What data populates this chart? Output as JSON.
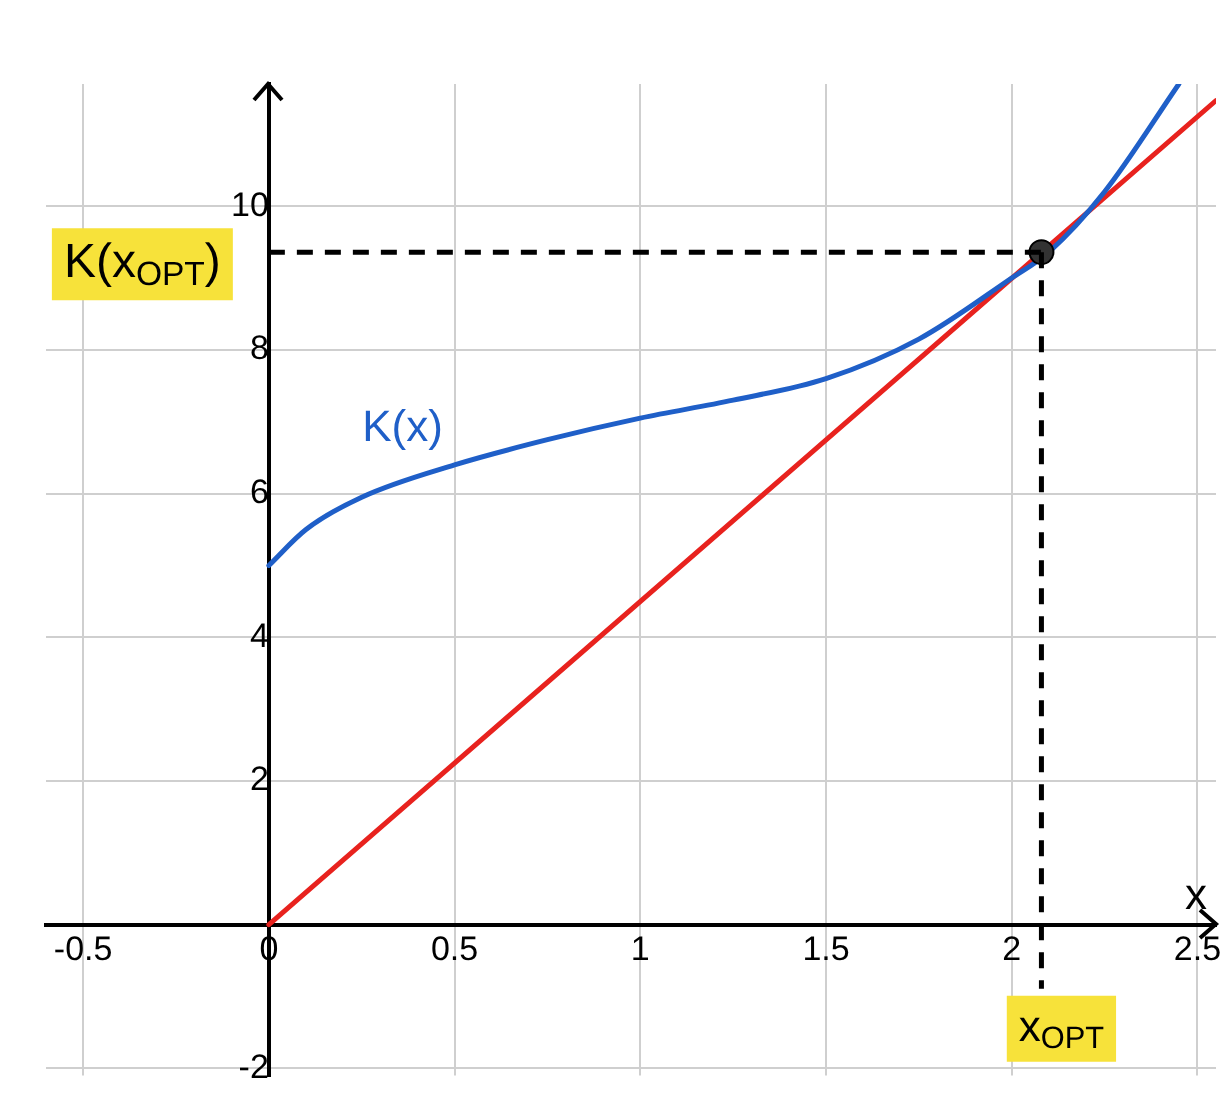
{
  "chart_data": {
    "type": "line",
    "xlabel": "x",
    "xlim": [
      -0.6,
      2.55
    ],
    "ylim": [
      -2.1,
      11.7
    ],
    "xticks": [
      -0.5,
      0,
      0.5,
      1,
      1.5,
      2,
      2.5
    ],
    "yticks": [
      -2,
      {
        "value": 0,
        "label": null
      },
      2,
      4,
      6,
      8,
      10
    ],
    "grid": true,
    "legend": false,
    "series": [
      {
        "name": "K(x)",
        "color": "#1f5fc8",
        "marker": "none",
        "x": [
          0,
          0.1,
          0.25,
          0.5,
          0.75,
          1,
          1.25,
          1.5,
          1.75,
          2,
          2.1,
          2.25,
          2.45
        ],
        "values": [
          5,
          5.5,
          5.95,
          6.4,
          6.75,
          7.05,
          7.3,
          7.6,
          8.15,
          9.0,
          9.36,
          10.2,
          11.7
        ]
      },
      {
        "color": "#e8221e",
        "marker": "none",
        "x": [
          0,
          2.55
        ],
        "values": [
          0,
          11.47
        ]
      },
      {
        "color": "#333333",
        "type": "scatter",
        "marker": "circle",
        "x": [
          2.08
        ],
        "values": [
          9.36
        ]
      }
    ],
    "ref_lines": [
      {
        "axis": "y",
        "value": 9.36,
        "label": "K(x$_{OPT}$)",
        "color": "#000000",
        "line_style": "dashed"
      },
      {
        "axis": "x",
        "value": 2.08,
        "label": "x$_{OPT}$",
        "color": "#000000",
        "line_style": "dashed"
      }
    ]
  }
}
